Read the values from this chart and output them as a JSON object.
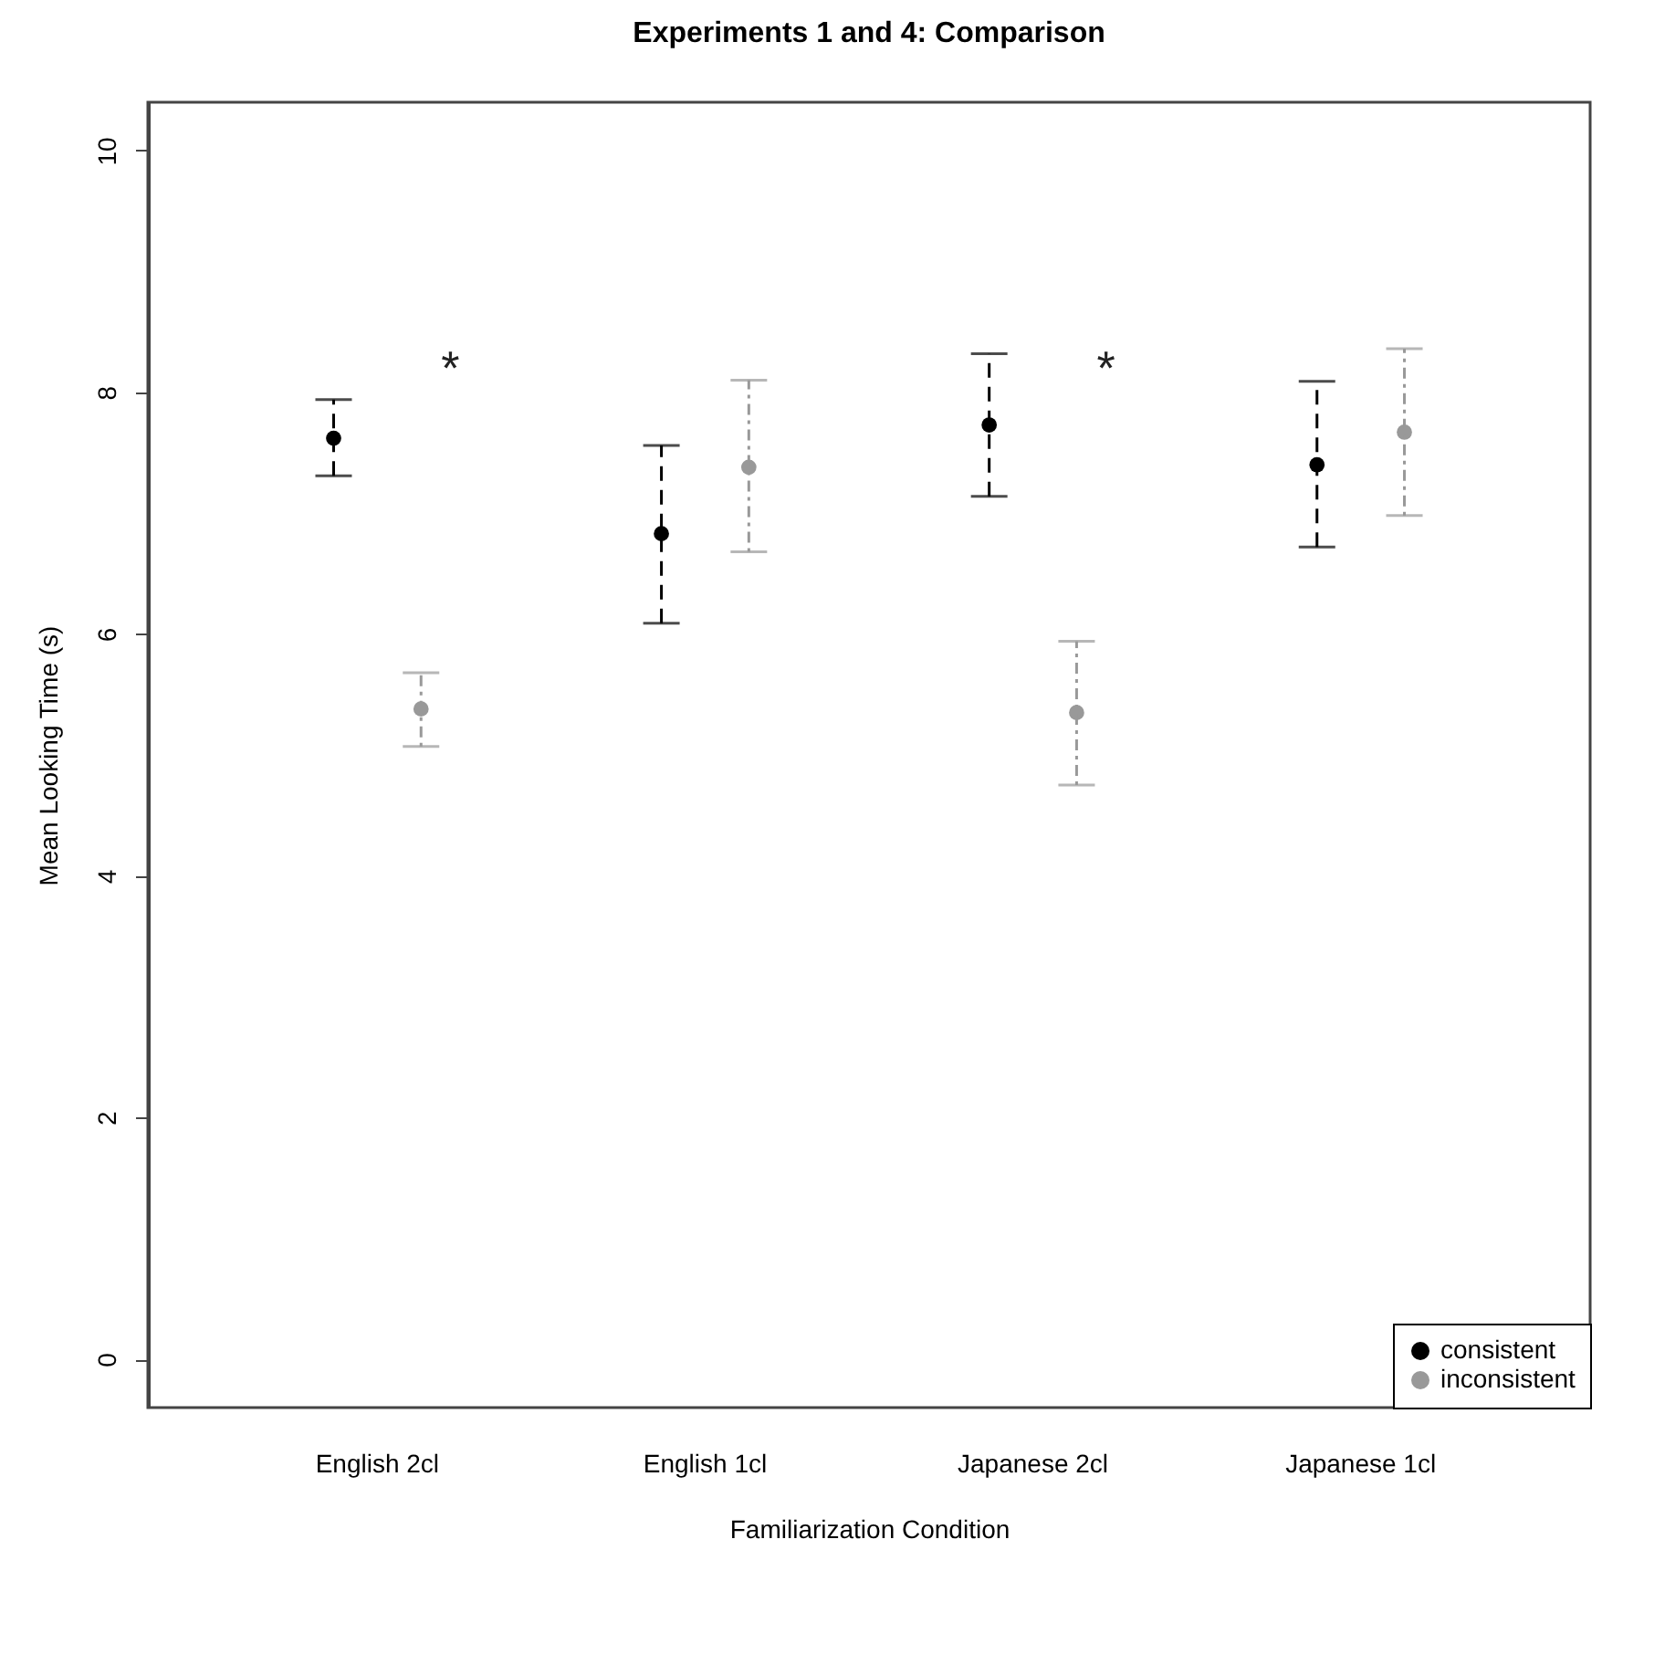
{
  "chart_data": {
    "type": "scatter",
    "title": "Experiments 1 and 4: Comparison",
    "xlabel": "Familiarization Condition",
    "ylabel": "Mean Looking Time (s)",
    "categories": [
      "English 2cl",
      "English 1cl",
      "Japanese 2cl",
      "Japanese 1cl"
    ],
    "series": [
      {
        "name": "consistent",
        "color": "#000000",
        "line_style": "dashed",
        "values": [
          7.62,
          6.83,
          7.73,
          7.4
        ],
        "errors": [
          [
            7.31,
            7.94
          ],
          [
            6.09,
            7.56
          ],
          [
            7.14,
            8.32
          ],
          [
            6.72,
            8.09
          ]
        ]
      },
      {
        "name": "inconsistent",
        "color": "#999999",
        "line_style": "dotted",
        "values": [
          5.38,
          7.38,
          5.35,
          7.67
        ],
        "errors": [
          [
            5.07,
            5.68
          ],
          [
            6.68,
            8.1
          ],
          [
            4.75,
            5.94
          ],
          [
            6.98,
            8.36
          ]
        ]
      }
    ],
    "annotations": [
      "*",
      "*"
    ],
    "ylim": [
      -0.4,
      10.4
    ],
    "yticks": [
      {
        "value": 0,
        "label": "0"
      },
      {
        "value": 2,
        "label": "2"
      },
      {
        "value": 4,
        "label": "4"
      },
      {
        "value": 6,
        "label": "6"
      },
      {
        "value": 8,
        "label": "8"
      },
      {
        "value": 10,
        "label": "10"
      }
    ],
    "grid": false,
    "legend": "bottom right",
    "marker": "circle"
  }
}
